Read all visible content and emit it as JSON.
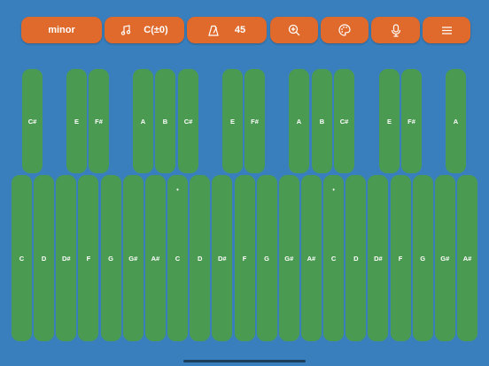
{
  "toolbar": {
    "scale_label": "minor",
    "key_label": "C(±0)",
    "tempo_value": "45",
    "icons": [
      "music-note-icon",
      "metronome-icon",
      "zoom-in-icon",
      "palette-icon",
      "microphone-icon",
      "menu-icon"
    ]
  },
  "colors": {
    "background": "#3a7fbd",
    "button": "#e06a2c",
    "key": "#4b9a52"
  },
  "top_row_keys": [
    "C#",
    "E",
    "F#",
    "A",
    "B",
    "C#",
    "E",
    "F#",
    "A",
    "B",
    "C#",
    "E",
    "F#",
    "A"
  ],
  "bottom_row_keys": [
    {
      "label": "C",
      "dot": ""
    },
    {
      "label": "D",
      "dot": ""
    },
    {
      "label": "D#",
      "dot": ""
    },
    {
      "label": "F",
      "dot": ""
    },
    {
      "label": "G",
      "dot": ""
    },
    {
      "label": "G#",
      "dot": ""
    },
    {
      "label": "A#",
      "dot": ""
    },
    {
      "label": "C",
      "dot": "•"
    },
    {
      "label": "D",
      "dot": ""
    },
    {
      "label": "D#",
      "dot": ""
    },
    {
      "label": "F",
      "dot": ""
    },
    {
      "label": "G",
      "dot": ""
    },
    {
      "label": "G#",
      "dot": ""
    },
    {
      "label": "A#",
      "dot": ""
    },
    {
      "label": "C",
      "dot": "•"
    },
    {
      "label": "D",
      "dot": ""
    },
    {
      "label": "D#",
      "dot": ""
    },
    {
      "label": "F",
      "dot": ""
    },
    {
      "label": "G",
      "dot": ""
    },
    {
      "label": "G#",
      "dot": ""
    },
    {
      "label": "A#",
      "dot": ""
    }
  ]
}
